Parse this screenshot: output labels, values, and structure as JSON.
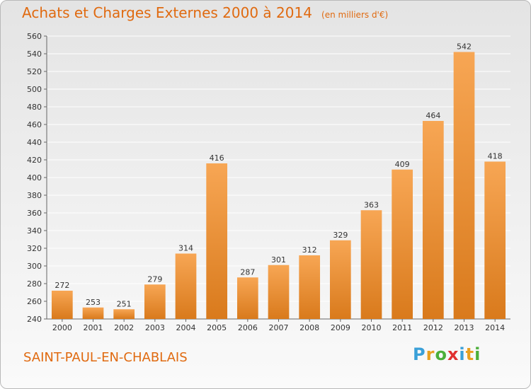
{
  "header": {
    "title": "Achats et Charges Externes 2000 à 2014",
    "unit": "(en milliers d'€)"
  },
  "footer": {
    "commune": "SAINT-PAUL-EN-CHABLAIS",
    "logo_letters": [
      "P",
      "r",
      "o",
      "x",
      "i",
      "t",
      "i"
    ],
    "logo_colors": [
      "#3aa0d8",
      "#e8a020",
      "#4caf3a",
      "#e03030",
      "#3aa0d8",
      "#e8a020",
      "#4caf3a"
    ]
  },
  "colors": {
    "bar_top": "#f7a654",
    "bar_bottom": "#d97a1c",
    "grid": "#ffffff",
    "title": "#e06a10"
  },
  "chart_data": {
    "type": "bar",
    "title": "Achats et Charges Externes 2000 à 2014",
    "subtitle": "(en milliers d'€)",
    "xlabel": "",
    "ylabel": "",
    "categories": [
      "2000",
      "2001",
      "2002",
      "2003",
      "2004",
      "2005",
      "2006",
      "2007",
      "2008",
      "2009",
      "2010",
      "2011",
      "2012",
      "2013",
      "2014"
    ],
    "values": [
      272,
      253,
      251,
      279,
      314,
      416,
      287,
      301,
      312,
      329,
      363,
      409,
      464,
      542,
      418
    ],
    "ylim": [
      240,
      560
    ],
    "yticks": [
      240,
      260,
      280,
      300,
      320,
      340,
      360,
      380,
      400,
      420,
      440,
      460,
      480,
      500,
      520,
      540,
      560
    ],
    "grid": true,
    "data_labels": true
  }
}
